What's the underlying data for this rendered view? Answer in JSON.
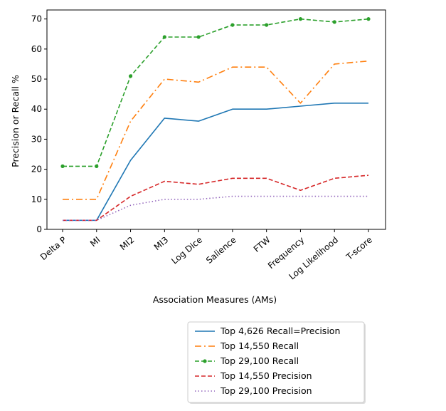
{
  "chart_data": {
    "type": "line",
    "title": "",
    "xlabel": "Association Measures (AMs)",
    "ylabel": "Precision or Recall %",
    "categories": [
      "Delta P",
      "MI",
      "MI2",
      "MI3",
      "Log Dice",
      "Salience",
      "FTW",
      "Frequency",
      "Log Likelihood",
      "T-score"
    ],
    "ylim": [
      0,
      73
    ],
    "yticks": [
      0,
      10,
      20,
      30,
      40,
      50,
      60,
      70
    ],
    "grid": false,
    "legend_position": "below",
    "series": [
      {
        "name": "Top 4,626 Recall=Precision",
        "color": "#1f77b4",
        "style": "solid",
        "marker": "none",
        "values": [
          3,
          3,
          23,
          37,
          36,
          40,
          40,
          41,
          42,
          42
        ]
      },
      {
        "name": "Top 14,550 Recall",
        "color": "#ff7f0e",
        "style": "dashdot",
        "marker": "none",
        "values": [
          10,
          10,
          36,
          50,
          49,
          54,
          54,
          42,
          55,
          56
        ]
      },
      {
        "name": "Top 29,100 Recall",
        "color": "#2ca02c",
        "style": "dashed",
        "marker": "dot",
        "values": [
          21,
          21,
          51,
          64,
          64,
          68,
          68,
          70,
          69,
          70
        ]
      },
      {
        "name": "Top 14,550 Precision",
        "color": "#d62728",
        "style": "dashed",
        "marker": "none",
        "values": [
          3,
          3,
          11,
          16,
          15,
          17,
          17,
          13,
          17,
          18
        ]
      },
      {
        "name": "Top 29,100 Precision",
        "color": "#9467bd",
        "style": "dotted",
        "marker": "none",
        "values": [
          3,
          3,
          8,
          10,
          10,
          11,
          11,
          11,
          11,
          11
        ]
      }
    ]
  }
}
